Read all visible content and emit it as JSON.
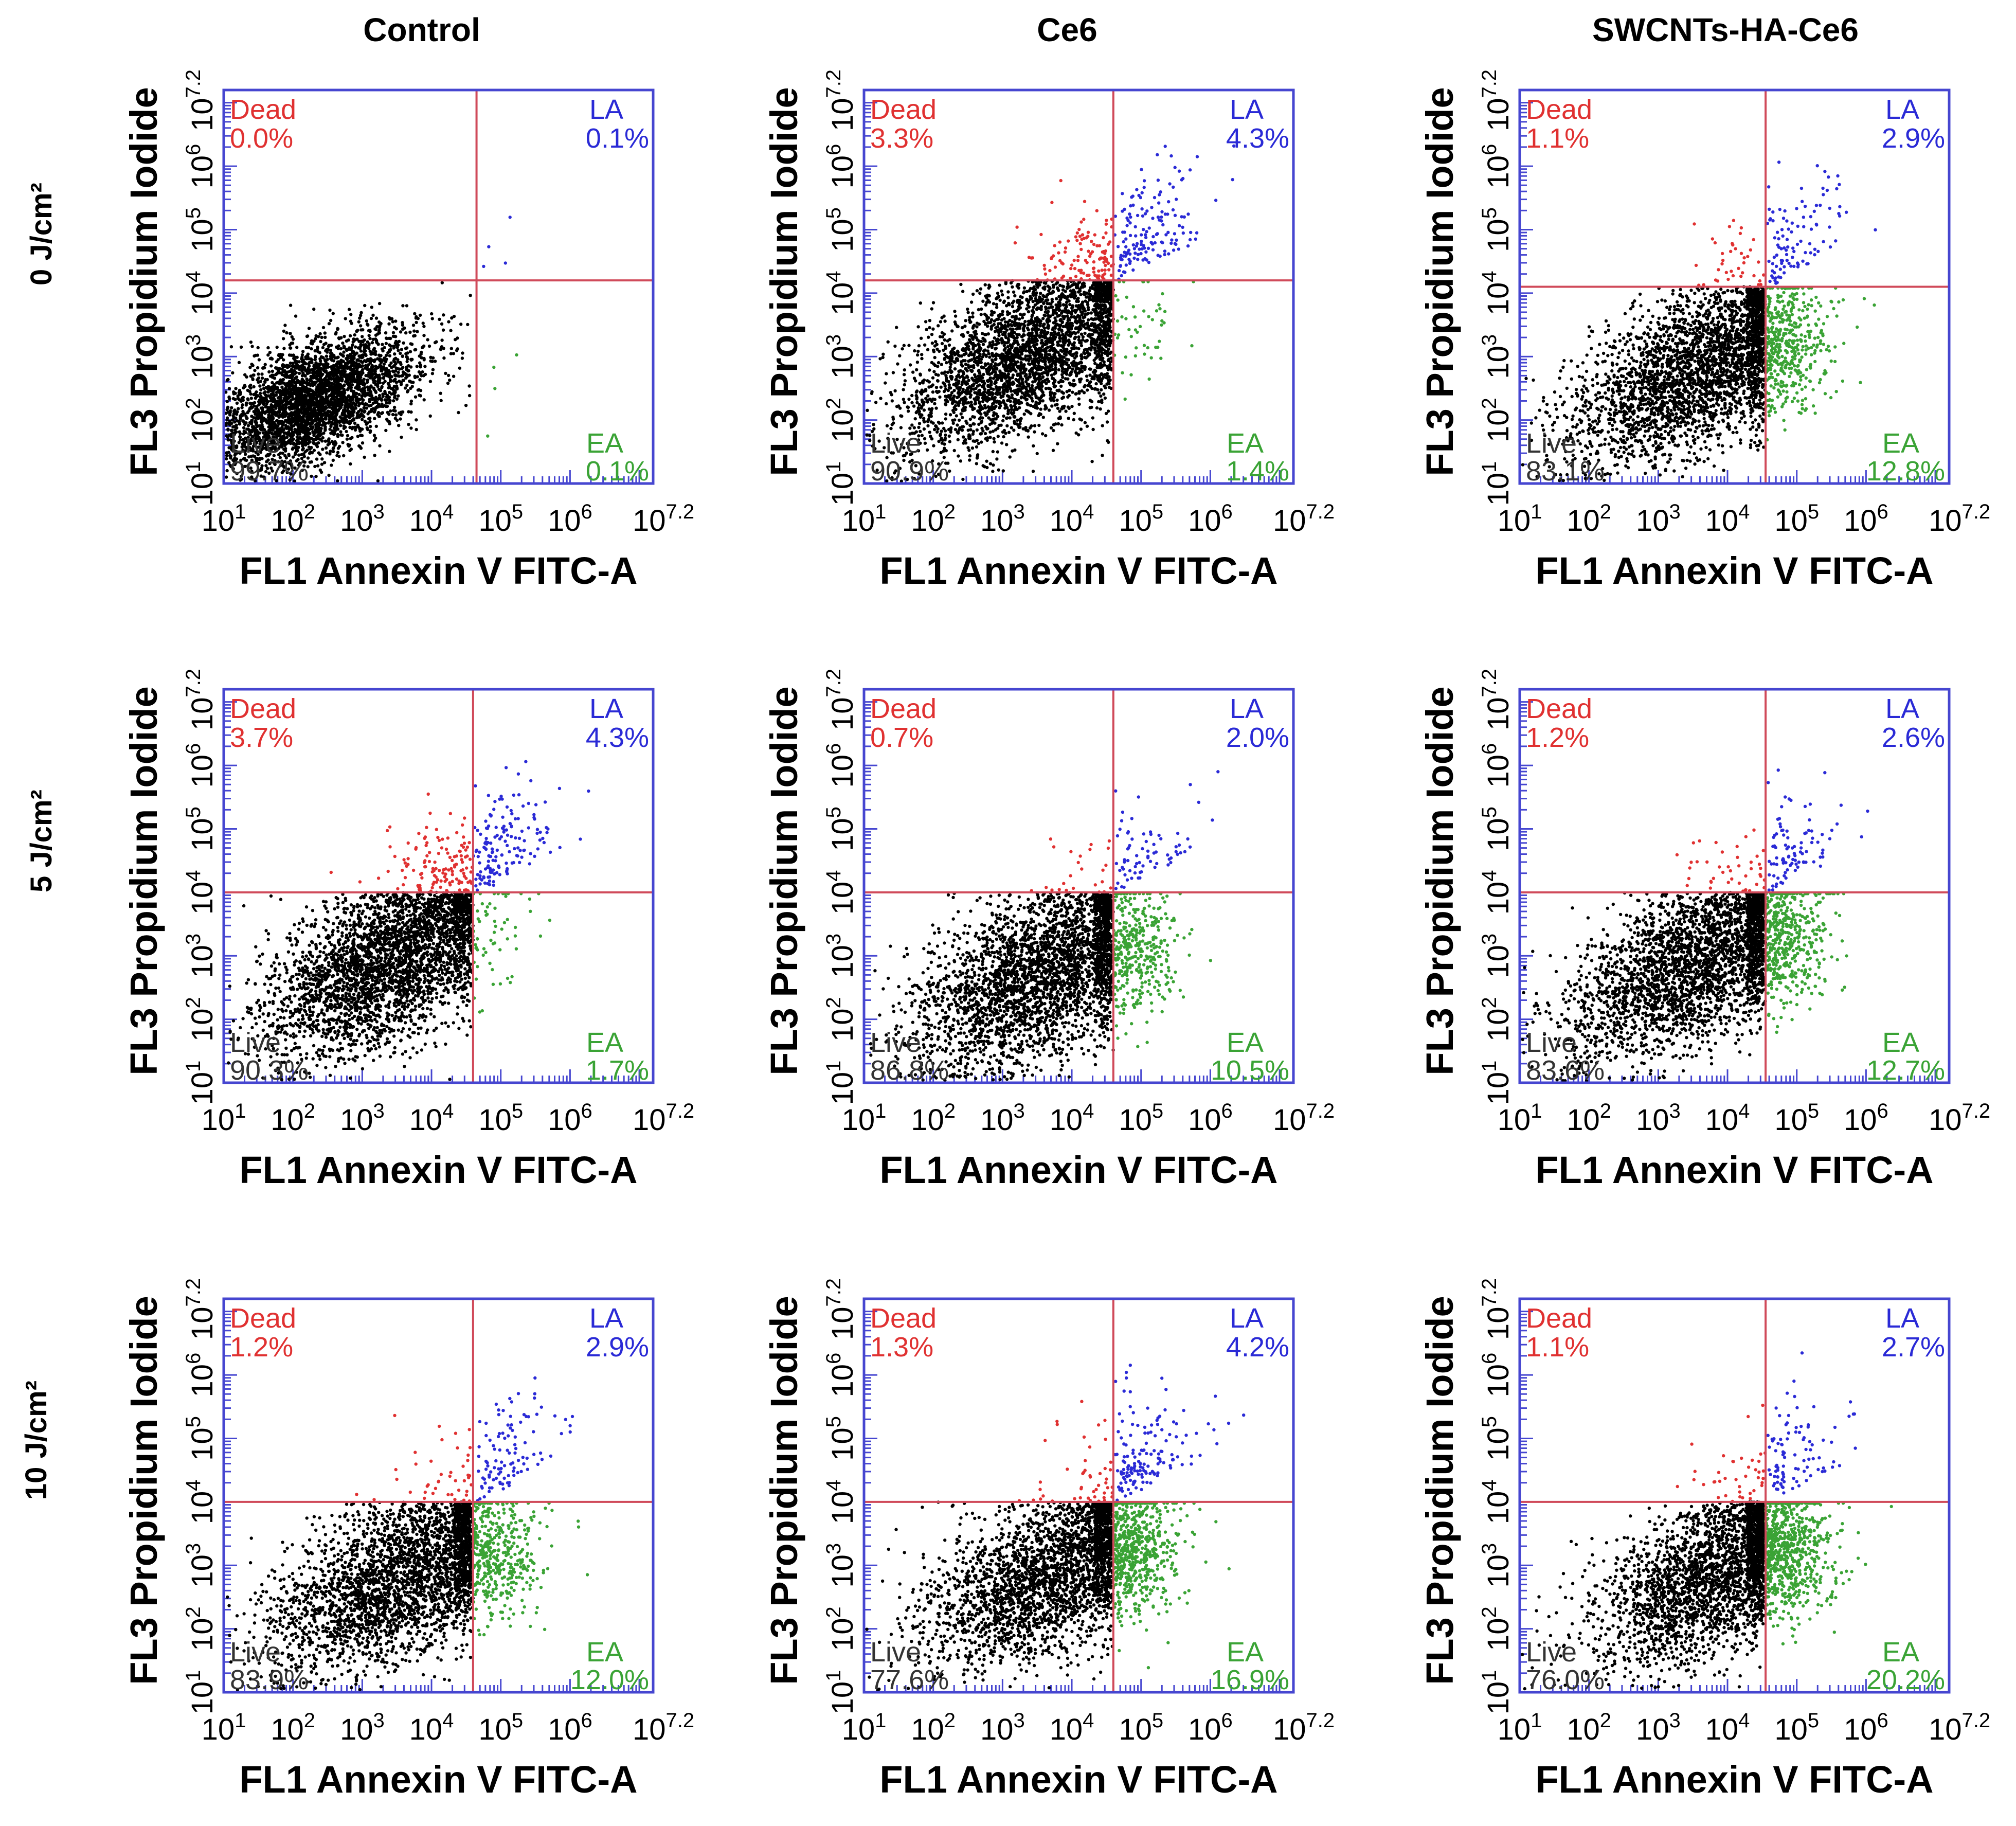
{
  "figure": {
    "column_headers": [
      "Control",
      "Ce6",
      "SWCNTs-HA-Ce6"
    ],
    "row_headers": [
      "0 J/cm²",
      "5 J/cm²",
      "10 J/cm²"
    ]
  },
  "colors": {
    "dead": "#e03131",
    "la": "#2a2ad6",
    "ea": "#3aa335",
    "live": "#000000",
    "frame": "#4646d0",
    "gate": "#d04a5a"
  },
  "chart_data": [
    {
      "type": "scatter",
      "title": "Control",
      "condition": "0 J/cm²",
      "xlabel": "FL1 Annexin V FITC-A",
      "ylabel": "FL3 Propidium Iodide",
      "xlim": [
        1,
        7.2
      ],
      "ylim": [
        1,
        7.2
      ],
      "x_ticks": [
        "10^1",
        "10^2",
        "10^3",
        "10^4",
        "10^5",
        "10^6",
        "10^7.2"
      ],
      "y_ticks": [
        "10^1",
        "10^2",
        "10^3",
        "10^4",
        "10^5",
        "10^6",
        "10^7.2"
      ],
      "gate_x": 4.65,
      "gate_y": 4.2,
      "quadrants": {
        "dead": {
          "label": "Dead",
          "value": "0.0%"
        },
        "la": {
          "label": "LA",
          "value": "0.1%"
        },
        "live": {
          "label": "Live",
          "value": "99.7%"
        },
        "ea": {
          "label": "EA",
          "value": "0.1%"
        }
      },
      "population": {
        "center": [
          2.3,
          2.3
        ],
        "spread": [
          0.75,
          0.55
        ]
      }
    },
    {
      "type": "scatter",
      "title": "Ce6",
      "condition": "0 J/cm²",
      "xlabel": "FL1 Annexin V FITC-A",
      "ylabel": "FL3 Propidium Iodide",
      "xlim": [
        1,
        7.2
      ],
      "ylim": [
        1,
        7.2
      ],
      "x_ticks": [
        "10^1",
        "10^2",
        "10^3",
        "10^4",
        "10^5",
        "10^6",
        "10^7.2"
      ],
      "y_ticks": [
        "10^1",
        "10^2",
        "10^3",
        "10^4",
        "10^5",
        "10^6",
        "10^7.2"
      ],
      "gate_x": 4.6,
      "gate_y": 4.2,
      "quadrants": {
        "dead": {
          "label": "Dead",
          "value": "3.3%"
        },
        "la": {
          "label": "LA",
          "value": "4.3%"
        },
        "live": {
          "label": "Live",
          "value": "90.9%"
        },
        "ea": {
          "label": "EA",
          "value": "1.4%"
        }
      },
      "population": {
        "center": [
          3.4,
          3.0
        ],
        "spread": [
          0.95,
          0.75
        ]
      }
    },
    {
      "type": "scatter",
      "title": "SWCNTs-HA-Ce6",
      "condition": "0 J/cm²",
      "xlabel": "FL1 Annexin V FITC-A",
      "ylabel": "FL3 Propidium Iodide",
      "xlim": [
        1,
        7.2
      ],
      "ylim": [
        1,
        7.2
      ],
      "x_ticks": [
        "10^1",
        "10^2",
        "10^3",
        "10^4",
        "10^5",
        "10^6",
        "10^7.2"
      ],
      "y_ticks": [
        "10^1",
        "10^2",
        "10^3",
        "10^4",
        "10^5",
        "10^6",
        "10^7.2"
      ],
      "gate_x": 4.55,
      "gate_y": 4.1,
      "quadrants": {
        "dead": {
          "label": "Dead",
          "value": "1.1%"
        },
        "la": {
          "label": "LA",
          "value": "2.9%"
        },
        "live": {
          "label": "Live",
          "value": "83.1%"
        },
        "ea": {
          "label": "EA",
          "value": "12.8%"
        }
      },
      "population": {
        "center": [
          3.6,
          2.8
        ],
        "spread": [
          0.95,
          0.75
        ]
      }
    },
    {
      "type": "scatter",
      "title": "Control",
      "condition": "5 J/cm²",
      "xlabel": "FL1 Annexin V FITC-A",
      "ylabel": "FL3 Propidium Iodide",
      "xlim": [
        1,
        7.2
      ],
      "ylim": [
        1,
        7.2
      ],
      "x_ticks": [
        "10^1",
        "10^2",
        "10^3",
        "10^4",
        "10^5",
        "10^6",
        "10^7.2"
      ],
      "y_ticks": [
        "10^1",
        "10^2",
        "10^3",
        "10^4",
        "10^5",
        "10^6",
        "10^7.2"
      ],
      "gate_x": 4.6,
      "gate_y": 4.0,
      "quadrants": {
        "dead": {
          "label": "Dead",
          "value": "3.7%"
        },
        "la": {
          "label": "LA",
          "value": "4.3%"
        },
        "live": {
          "label": "Live",
          "value": "90.3%"
        },
        "ea": {
          "label": "EA",
          "value": "1.7%"
        }
      },
      "population": {
        "center": [
          3.4,
          2.9
        ],
        "spread": [
          0.9,
          0.75
        ]
      }
    },
    {
      "type": "scatter",
      "title": "Ce6",
      "condition": "5 J/cm²",
      "xlabel": "FL1 Annexin V FITC-A",
      "ylabel": "FL3 Propidium Iodide",
      "xlim": [
        1,
        7.2
      ],
      "ylim": [
        1,
        7.2
      ],
      "x_ticks": [
        "10^1",
        "10^2",
        "10^3",
        "10^4",
        "10^5",
        "10^6",
        "10^7.2"
      ],
      "y_ticks": [
        "10^1",
        "10^2",
        "10^3",
        "10^4",
        "10^5",
        "10^6",
        "10^7.2"
      ],
      "gate_x": 4.6,
      "gate_y": 4.0,
      "quadrants": {
        "dead": {
          "label": "Dead",
          "value": "0.7%"
        },
        "la": {
          "label": "LA",
          "value": "2.0%"
        },
        "live": {
          "label": "Live",
          "value": "86.8%"
        },
        "ea": {
          "label": "EA",
          "value": "10.5%"
        }
      },
      "population": {
        "center": [
          3.6,
          2.7
        ],
        "spread": [
          0.95,
          0.8
        ]
      }
    },
    {
      "type": "scatter",
      "title": "SWCNTs-HA-Ce6",
      "condition": "5 J/cm²",
      "xlabel": "FL1 Annexin V FITC-A",
      "ylabel": "FL3 Propidium Iodide",
      "xlim": [
        1,
        7.2
      ],
      "ylim": [
        1,
        7.2
      ],
      "x_ticks": [
        "10^1",
        "10^2",
        "10^3",
        "10^4",
        "10^5",
        "10^6",
        "10^7.2"
      ],
      "y_ticks": [
        "10^1",
        "10^2",
        "10^3",
        "10^4",
        "10^5",
        "10^6",
        "10^7.2"
      ],
      "gate_x": 4.55,
      "gate_y": 4.0,
      "quadrants": {
        "dead": {
          "label": "Dead",
          "value": "1.2%"
        },
        "la": {
          "label": "LA",
          "value": "2.6%"
        },
        "live": {
          "label": "Live",
          "value": "83.6%"
        },
        "ea": {
          "label": "EA",
          "value": "12.7%"
        }
      },
      "population": {
        "center": [
          3.6,
          2.9
        ],
        "spread": [
          0.95,
          0.75
        ]
      }
    },
    {
      "type": "scatter",
      "title": "Control",
      "condition": "10 J/cm²",
      "xlabel": "FL1 Annexin V FITC-A",
      "ylabel": "FL3 Propidium Iodide",
      "xlim": [
        1,
        7.2
      ],
      "ylim": [
        1,
        7.2
      ],
      "x_ticks": [
        "10^1",
        "10^2",
        "10^3",
        "10^4",
        "10^5",
        "10^6",
        "10^7.2"
      ],
      "y_ticks": [
        "10^1",
        "10^2",
        "10^3",
        "10^4",
        "10^5",
        "10^6",
        "10^7.2"
      ],
      "gate_x": 4.6,
      "gate_y": 4.0,
      "quadrants": {
        "dead": {
          "label": "Dead",
          "value": "1.2%"
        },
        "la": {
          "label": "LA",
          "value": "2.9%"
        },
        "live": {
          "label": "Live",
          "value": "83.9%"
        },
        "ea": {
          "label": "EA",
          "value": "12.0%"
        }
      },
      "population": {
        "center": [
          3.6,
          2.8
        ],
        "spread": [
          0.95,
          0.75
        ]
      }
    },
    {
      "type": "scatter",
      "title": "Ce6",
      "condition": "10 J/cm²",
      "xlabel": "FL1 Annexin V FITC-A",
      "ylabel": "FL3 Propidium Iodide",
      "xlim": [
        1,
        7.2
      ],
      "ylim": [
        1,
        7.2
      ],
      "x_ticks": [
        "10^1",
        "10^2",
        "10^3",
        "10^4",
        "10^5",
        "10^6",
        "10^7.2"
      ],
      "y_ticks": [
        "10^1",
        "10^2",
        "10^3",
        "10^4",
        "10^5",
        "10^6",
        "10^7.2"
      ],
      "gate_x": 4.6,
      "gate_y": 4.0,
      "quadrants": {
        "dead": {
          "label": "Dead",
          "value": "1.3%"
        },
        "la": {
          "label": "LA",
          "value": "4.2%"
        },
        "live": {
          "label": "Live",
          "value": "77.6%"
        },
        "ea": {
          "label": "EA",
          "value": "16.9%"
        }
      },
      "population": {
        "center": [
          3.8,
          2.9
        ],
        "spread": [
          0.95,
          0.75
        ]
      }
    },
    {
      "type": "scatter",
      "title": "SWCNTs-HA-Ce6",
      "condition": "10 J/cm²",
      "xlabel": "FL1 Annexin V FITC-A",
      "ylabel": "FL3 Propidium Iodide",
      "xlim": [
        1,
        7.2
      ],
      "ylim": [
        1,
        7.2
      ],
      "x_ticks": [
        "10^1",
        "10^2",
        "10^3",
        "10^4",
        "10^5",
        "10^6",
        "10^7.2"
      ],
      "y_ticks": [
        "10^1",
        "10^2",
        "10^3",
        "10^4",
        "10^5",
        "10^6",
        "10^7.2"
      ],
      "gate_x": 4.55,
      "gate_y": 4.0,
      "quadrants": {
        "dead": {
          "label": "Dead",
          "value": "1.1%"
        },
        "la": {
          "label": "LA",
          "value": "2.7%"
        },
        "live": {
          "label": "Live",
          "value": "76.0%"
        },
        "ea": {
          "label": "EA",
          "value": "20.2%"
        }
      },
      "population": {
        "center": [
          3.9,
          2.9
        ],
        "spread": [
          0.9,
          0.75
        ]
      }
    }
  ]
}
